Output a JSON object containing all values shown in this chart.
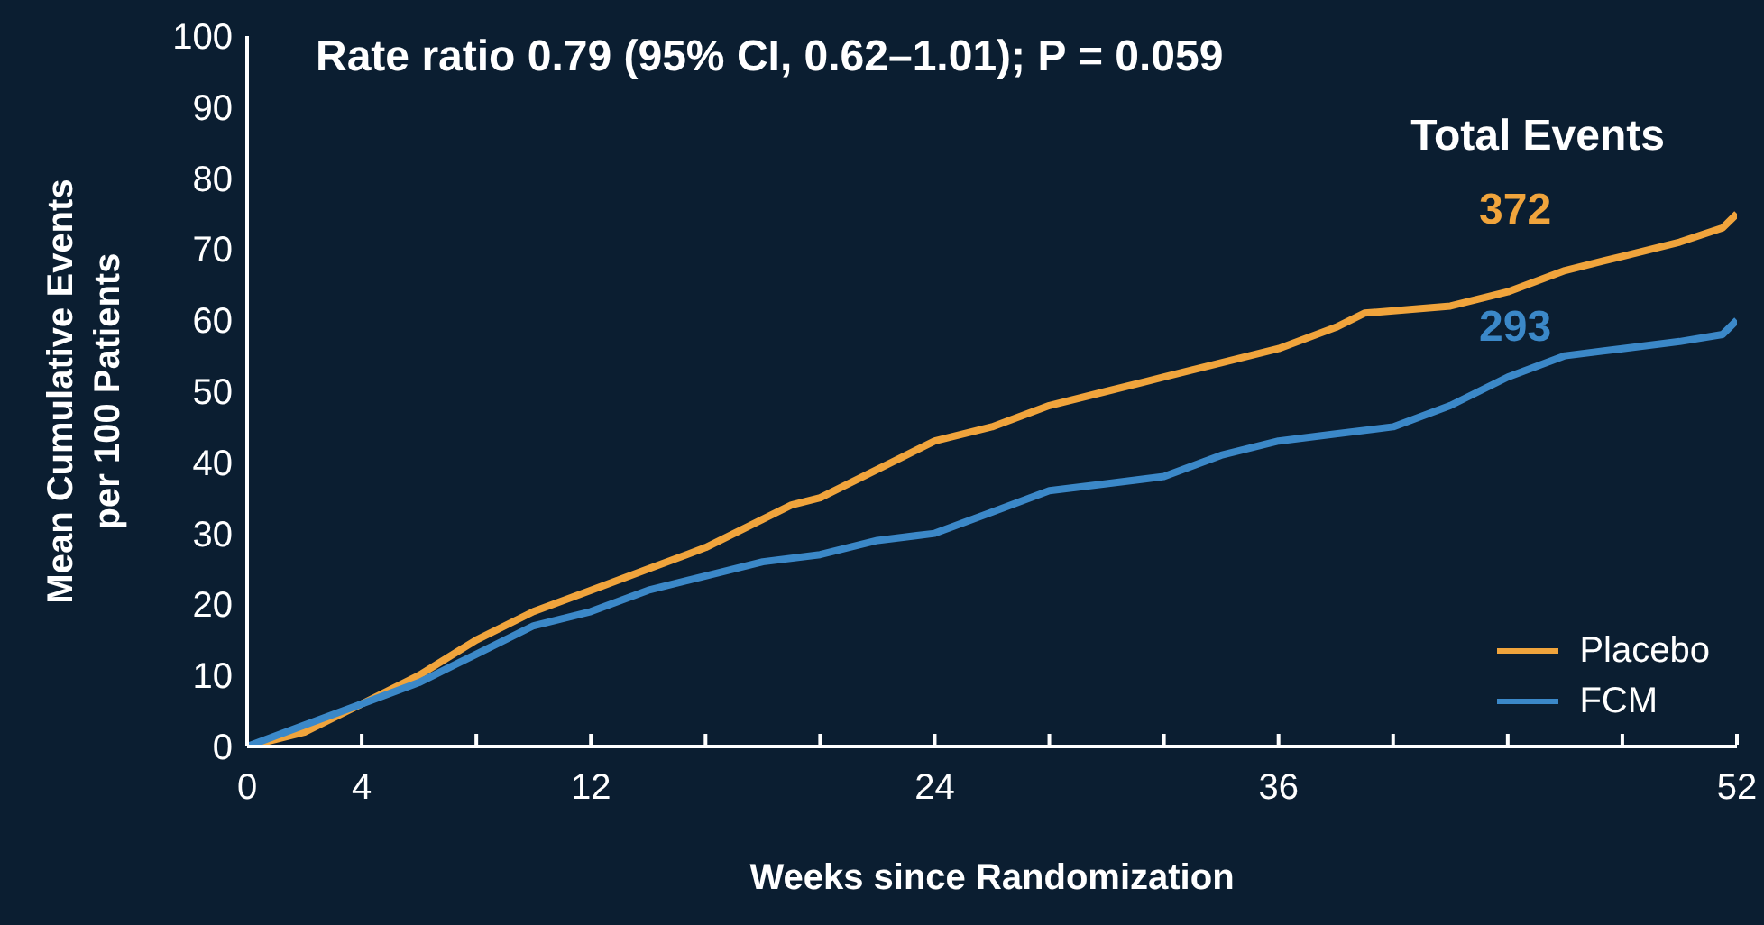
{
  "chart_data": {
    "type": "line",
    "title": "Rate ratio 0.79 (95% CI, 0.62–1.01); P = 0.059",
    "xlabel": "Weeks since Randomization",
    "ylabel": "Mean Cumulative Events per 100 Patients",
    "annotations": [
      "Total Events",
      "372",
      "293"
    ],
    "xlim": [
      0,
      52
    ],
    "ylim": [
      0,
      100
    ],
    "xticks": [
      0,
      4,
      {
        "value": 8,
        "label": null
      },
      12,
      {
        "value": 16,
        "label": null
      },
      {
        "value": 20,
        "label": null
      },
      24,
      {
        "value": 28,
        "label": null
      },
      {
        "value": 32,
        "label": null
      },
      36,
      {
        "value": 40,
        "label": null
      },
      {
        "value": 44,
        "label": null
      },
      {
        "value": 48,
        "label": null
      },
      52
    ],
    "yticks": [
      0,
      10,
      20,
      30,
      40,
      50,
      60,
      70,
      80,
      90,
      100
    ],
    "legend": "bottom right",
    "marker": "none",
    "line_style": "solid",
    "series": [
      {
        "name": "Placebo",
        "color": "#f0a43c",
        "x": [
          0,
          2,
          4,
          6,
          8,
          10,
          12,
          14,
          16,
          18,
          19,
          20,
          22,
          24,
          26,
          28,
          30,
          32,
          34,
          36,
          38,
          39,
          42,
          44,
          46,
          48,
          50,
          51.5,
          52
        ],
        "values": [
          0,
          2,
          6,
          10,
          15,
          19,
          22,
          25,
          28,
          32,
          34,
          35,
          39,
          43,
          45,
          48,
          50,
          52,
          54,
          56,
          59,
          61,
          62,
          64,
          67,
          69,
          71,
          73,
          75
        ]
      },
      {
        "name": "FCM",
        "color": "#3b88c8",
        "x": [
          0,
          2,
          4,
          6,
          8,
          10,
          12,
          14,
          16,
          18,
          20,
          22,
          24,
          26,
          28,
          30,
          32,
          34,
          36,
          38,
          40,
          42,
          44,
          46,
          48,
          50,
          51.5,
          52
        ],
        "values": [
          0,
          3,
          6,
          9,
          13,
          17,
          19,
          22,
          24,
          26,
          27,
          29,
          30,
          33,
          36,
          37,
          38,
          41,
          43,
          44,
          45,
          48,
          52,
          55,
          56,
          57,
          58,
          60
        ]
      }
    ]
  }
}
